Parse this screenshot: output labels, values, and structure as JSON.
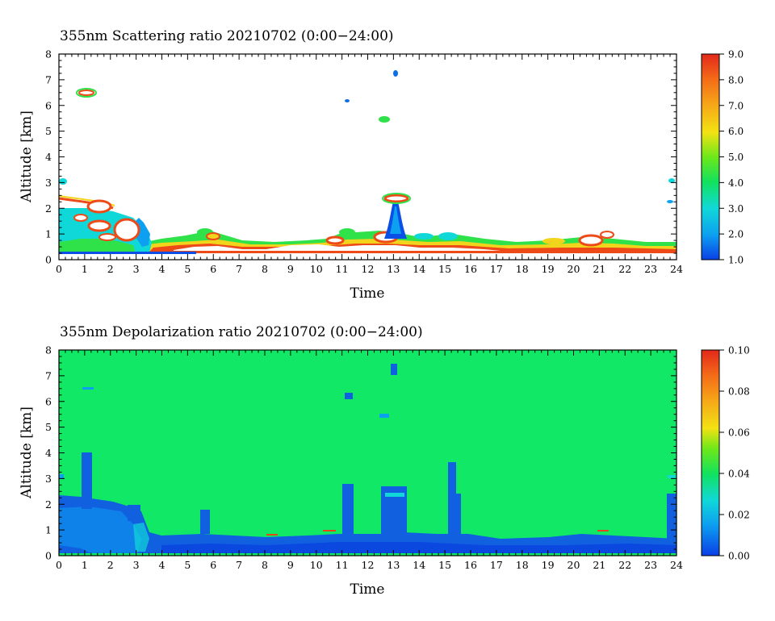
{
  "chart_data": [
    {
      "type": "heatmap",
      "title": "355nm Scattering ratio  20210702 (0:00−24:00)",
      "xlabel": "Time",
      "ylabel": "Altitude [km]",
      "xlim": [
        0,
        24
      ],
      "ylim": [
        0,
        8
      ],
      "x_ticks": [
        "0",
        "1",
        "2",
        "3",
        "4",
        "5",
        "6",
        "7",
        "8",
        "9",
        "10",
        "11",
        "12",
        "13",
        "14",
        "15",
        "16",
        "17",
        "18",
        "19",
        "20",
        "21",
        "22",
        "23",
        "24"
      ],
      "y_ticks": [
        "0",
        "1",
        "2",
        "3",
        "4",
        "5",
        "6",
        "7",
        "8"
      ],
      "colorbar": {
        "min": 1.0,
        "max": 9.0,
        "ticks": [
          "1.0",
          "2.0",
          "3.0",
          "4.0",
          "5.0",
          "6.0",
          "7.0",
          "8.0",
          "9.0"
        ]
      },
      "background_value": 1.0,
      "background_color": "#ffffff",
      "features": [
        {
          "kind": "boundary_layer",
          "time_range": [
            0,
            24
          ],
          "altitude_top_km": [
            0.5,
            0.8
          ],
          "value_range": [
            2,
            9
          ]
        },
        {
          "kind": "low_cloud",
          "time_range": [
            0,
            2.6
          ],
          "altitude_range_km": [
            0.2,
            2.4
          ],
          "value_range": [
            3,
            9
          ]
        },
        {
          "kind": "plume",
          "time_center": 13,
          "altitude_range_km": [
            0.6,
            2.4
          ],
          "value_range": [
            2,
            9
          ]
        },
        {
          "kind": "isolated_cloud",
          "time_center": 1.0,
          "altitude_km": 6.5
        },
        {
          "kind": "isolated_cloud",
          "time_center": 11.2,
          "altitude_km": 6.2
        },
        {
          "kind": "isolated_cloud",
          "time_center": 12.6,
          "altitude_km": 5.4
        },
        {
          "kind": "isolated_cloud",
          "time_center": 13.1,
          "altitude_km": 7.2
        },
        {
          "kind": "isolated_cloud",
          "time_center": 23.8,
          "altitude_km": 3.1
        },
        {
          "kind": "isolated_cloud",
          "time_center": 23.8,
          "altitude_km": 2.2
        }
      ]
    },
    {
      "type": "heatmap",
      "title": "355nm Depolarization ratio  20210702 (0:00−24:00)",
      "xlabel": "Time",
      "ylabel": "Altitude [km]",
      "xlim": [
        0,
        24
      ],
      "ylim": [
        0,
        8
      ],
      "x_ticks": [
        "0",
        "1",
        "2",
        "3",
        "4",
        "5",
        "6",
        "7",
        "8",
        "9",
        "10",
        "11",
        "12",
        "13",
        "14",
        "15",
        "16",
        "17",
        "18",
        "19",
        "20",
        "21",
        "22",
        "23",
        "24"
      ],
      "y_ticks": [
        "0",
        "1",
        "2",
        "3",
        "4",
        "5",
        "6",
        "7",
        "8"
      ],
      "colorbar": {
        "min": 0.0,
        "max": 0.1,
        "ticks": [
          "0.00",
          "0.02",
          "0.04",
          "0.06",
          "0.08",
          "0.10"
        ]
      },
      "background_value": 0.04,
      "background_color": "#11e866",
      "features": [
        {
          "kind": "low_depolarization_layer",
          "time_range": [
            0,
            24
          ],
          "altitude_top_km": [
            0.6,
            2.4
          ],
          "value_range": [
            0.0,
            0.02
          ]
        },
        {
          "kind": "column",
          "time_range": [
            0.9,
            1.3
          ],
          "altitude_top_km": 4.0
        },
        {
          "kind": "column",
          "time_range": [
            11.0,
            11.4
          ],
          "altitude_top_km": 2.8
        },
        {
          "kind": "column",
          "time_range": [
            12.5,
            13.6
          ],
          "altitude_top_km": 2.7
        },
        {
          "kind": "column",
          "time_range": [
            15.1,
            15.5
          ],
          "altitude_top_km": 3.6
        },
        {
          "kind": "column",
          "time_range": [
            23.7,
            24.0
          ],
          "altitude_top_km": 2.4
        }
      ]
    }
  ]
}
